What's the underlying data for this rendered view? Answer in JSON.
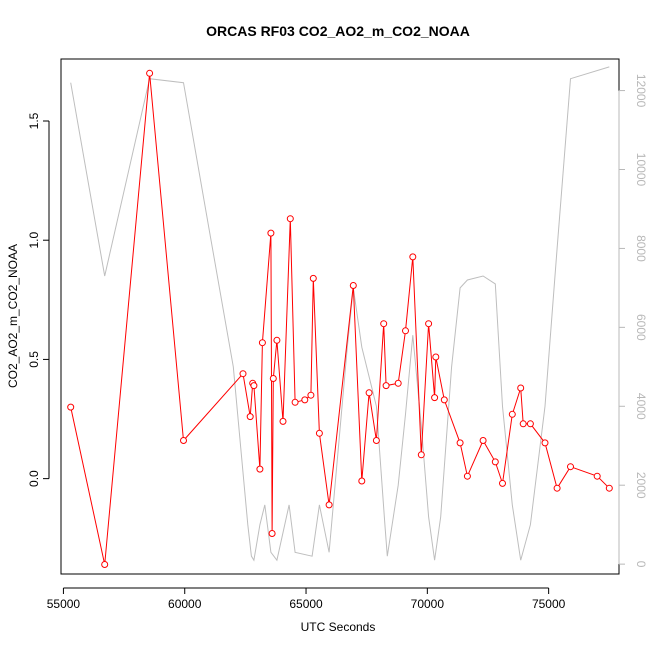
{
  "chart_data": {
    "type": "line",
    "title": "ORCAS RF03 CO2_AO2_m_CO2_NOAA",
    "xlabel": "UTC Seconds",
    "ylabel": "CO2_AO2_m_CO2_NOAA",
    "xlim": [
      54900,
      77900
    ],
    "ylim": [
      -0.4,
      1.76
    ],
    "y2lim": [
      -250,
      12800
    ],
    "x_ticks": [
      55000,
      60000,
      65000,
      70000,
      75000
    ],
    "y_ticks": [
      0.0,
      0.5,
      1.0,
      1.5
    ],
    "y2_ticks": [
      0,
      2000,
      4000,
      6000,
      8000,
      10000,
      12000
    ],
    "x_tick_labels": [
      "55000",
      "60000",
      "65000",
      "70000",
      "75000"
    ],
    "y_tick_labels": [
      "0.0",
      "0.5",
      "1.0",
      "1.5"
    ],
    "y2_tick_labels": [
      "0",
      "2000",
      "4000",
      "6000",
      "8000",
      "10000",
      "12000"
    ],
    "colors": {
      "primary": "#ff0000",
      "secondary": "#bebebe"
    },
    "series": [
      {
        "axis": "left",
        "style": "line+open-circles",
        "points": [
          [
            55300,
            0.3
          ],
          [
            56700,
            -0.36
          ],
          [
            58550,
            1.7
          ],
          [
            59950,
            0.16
          ],
          [
            62400,
            0.44
          ],
          [
            62700,
            0.26
          ],
          [
            62800,
            0.4
          ],
          [
            62850,
            0.39
          ],
          [
            63100,
            0.04
          ],
          [
            63200,
            0.57
          ],
          [
            63550,
            1.03
          ],
          [
            63600,
            -0.23
          ],
          [
            63650,
            0.42
          ],
          [
            63800,
            0.58
          ],
          [
            64050,
            0.24
          ],
          [
            64350,
            1.09
          ],
          [
            64550,
            0.32
          ],
          [
            64950,
            0.33
          ],
          [
            65200,
            0.35
          ],
          [
            65300,
            0.84
          ],
          [
            65550,
            0.19
          ],
          [
            65950,
            -0.11
          ],
          [
            66950,
            0.81
          ],
          [
            67300,
            -0.01
          ],
          [
            67600,
            0.36
          ],
          [
            67900,
            0.16
          ],
          [
            68200,
            0.65
          ],
          [
            68300,
            0.39
          ],
          [
            68800,
            0.4
          ],
          [
            69100,
            0.62
          ],
          [
            69400,
            0.93
          ],
          [
            69750,
            0.1
          ],
          [
            70050,
            0.65
          ],
          [
            70300,
            0.34
          ],
          [
            70350,
            0.51
          ],
          [
            70700,
            0.33
          ],
          [
            71350,
            0.15
          ],
          [
            71650,
            0.01
          ],
          [
            72300,
            0.16
          ],
          [
            72800,
            0.07
          ],
          [
            73100,
            -0.02
          ],
          [
            73500,
            0.27
          ],
          [
            73850,
            0.38
          ],
          [
            73950,
            0.23
          ],
          [
            74250,
            0.23
          ],
          [
            74850,
            0.15
          ],
          [
            75350,
            -0.04
          ],
          [
            75900,
            0.05
          ],
          [
            77000,
            0.01
          ],
          [
            77500,
            -0.04
          ]
        ]
      },
      {
        "axis": "right",
        "style": "line",
        "points": [
          [
            55300,
            12200
          ],
          [
            56700,
            7300
          ],
          [
            58550,
            12300
          ],
          [
            59950,
            12200
          ],
          [
            61000,
            8500
          ],
          [
            62000,
            5000
          ],
          [
            62600,
            1000
          ],
          [
            62750,
            200
          ],
          [
            62850,
            100
          ],
          [
            63100,
            1000
          ],
          [
            63300,
            1500
          ],
          [
            63550,
            300
          ],
          [
            63800,
            100
          ],
          [
            64050,
            800
          ],
          [
            64300,
            1500
          ],
          [
            64550,
            300
          ],
          [
            65250,
            200
          ],
          [
            65550,
            1500
          ],
          [
            65950,
            300
          ],
          [
            66700,
            5500
          ],
          [
            66950,
            7000
          ],
          [
            67300,
            5500
          ],
          [
            67900,
            4000
          ],
          [
            68250,
            1000
          ],
          [
            68350,
            200
          ],
          [
            68800,
            2000
          ],
          [
            69100,
            3800
          ],
          [
            69400,
            5800
          ],
          [
            69750,
            3500
          ],
          [
            70050,
            1200
          ],
          [
            70300,
            100
          ],
          [
            70550,
            1200
          ],
          [
            71000,
            5000
          ],
          [
            71350,
            7000
          ],
          [
            71650,
            7200
          ],
          [
            72300,
            7300
          ],
          [
            72800,
            7100
          ],
          [
            73100,
            4000
          ],
          [
            73500,
            1500
          ],
          [
            73850,
            100
          ],
          [
            74250,
            1000
          ],
          [
            74850,
            4000
          ],
          [
            75350,
            8000
          ],
          [
            75900,
            12300
          ],
          [
            77500,
            12600
          ]
        ]
      }
    ]
  }
}
